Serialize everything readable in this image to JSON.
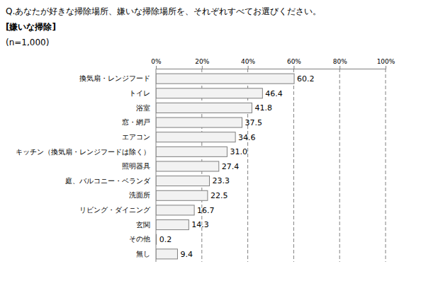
{
  "chart_data": {
    "type": "bar",
    "title": "Q.あなたが好きな掃除場所、嫌いな掃除場所を、それぞれすべてお選びください。",
    "subtitle": "[嫌いな掃除]",
    "annotations": [
      "(n=1,000)"
    ],
    "orientation": "horizontal",
    "categories": [
      "換気扇・レンジフード",
      "トイレ",
      "浴室",
      "窓・網戸",
      "エアコン",
      "キッチン（換気扇・レンジフードは除く）",
      "照明器具",
      "庭、バルコニー・ベランダ",
      "洗面所",
      "リビング・ダイニング",
      "玄関",
      "その他",
      "無し"
    ],
    "values": [
      60.2,
      46.4,
      41.8,
      37.5,
      34.6,
      31.0,
      27.4,
      23.3,
      22.5,
      16.7,
      14.3,
      0.2,
      9.4
    ],
    "value_labels": [
      "60.2",
      "46.4",
      "41.8",
      "37.5",
      "34.6",
      "31.0",
      "27.4",
      "23.3",
      "22.5",
      "16.7",
      "14.3",
      "0.2",
      "9.4"
    ],
    "color": "#f2f2f2",
    "xlim": [
      0,
      100
    ],
    "xticks": [
      {
        "value": 0,
        "label": "0%"
      },
      {
        "value": 20,
        "label": "20%"
      },
      {
        "value": 40,
        "label": "40%"
      },
      {
        "value": 60,
        "label": "60%"
      },
      {
        "value": 80,
        "label": "80%"
      },
      {
        "value": 100,
        "label": "100%"
      }
    ],
    "grid": true,
    "data_labels": true
  }
}
